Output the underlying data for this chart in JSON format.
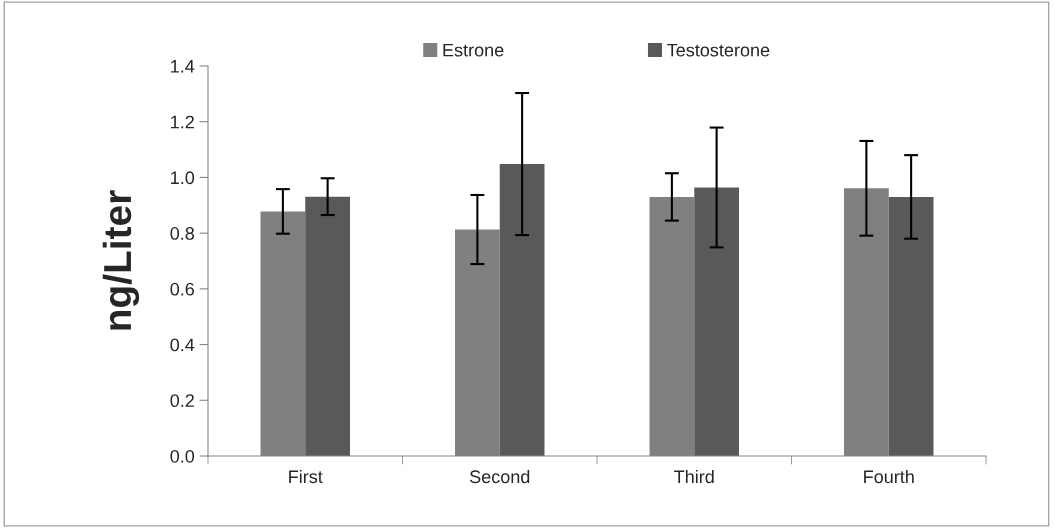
{
  "chart_data": {
    "type": "bar",
    "ylabel": "ng/Liter",
    "categories": [
      "First",
      "Second",
      "Third",
      "Fourth"
    ],
    "series": [
      {
        "name": "Estrone",
        "color": "#808080",
        "values": [
          0.878,
          0.813,
          0.93,
          0.961
        ],
        "errors": [
          0.08,
          0.124,
          0.085,
          0.17
        ]
      },
      {
        "name": "Testosterone",
        "color": "#595959",
        "values": [
          0.931,
          1.048,
          0.964,
          0.93
        ],
        "errors": [
          0.066,
          0.255,
          0.215,
          0.15
        ]
      }
    ],
    "ylim": [
      0,
      1.4
    ],
    "yticks": [
      {
        "value": 0,
        "label": "0.0"
      },
      {
        "value": 0.2,
        "label": "0.2"
      },
      {
        "value": 0.4,
        "label": "0.4"
      },
      {
        "value": 0.6,
        "label": "0.6"
      },
      {
        "value": 0.8,
        "label": "0.8"
      },
      {
        "value": 1.0,
        "label": "1.0"
      },
      {
        "value": 1.2,
        "label": "1.2"
      },
      {
        "value": 1.4,
        "label": "1.4"
      }
    ],
    "grid": false,
    "legend": "top"
  }
}
